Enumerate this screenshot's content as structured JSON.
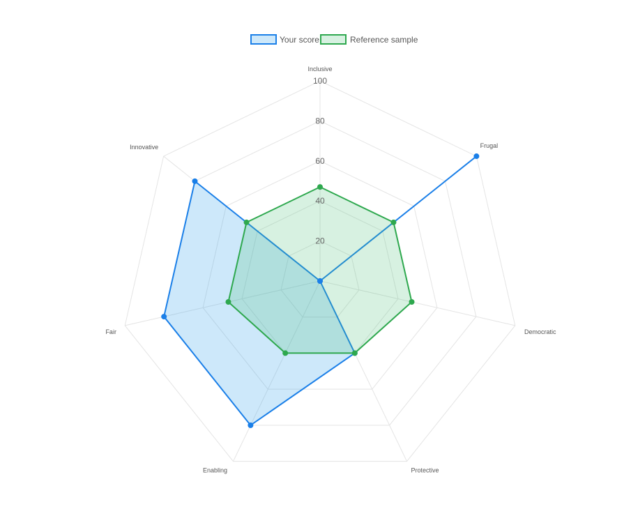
{
  "chart_data": {
    "type": "radar",
    "title": "",
    "legend_position": "top",
    "axes": [
      "Inclusive",
      "Frugal",
      "Democratic",
      "Protective",
      "Enabling",
      "Fair",
      "Innovative"
    ],
    "r_range": [
      0,
      100
    ],
    "ticks": [
      20,
      40,
      60,
      80,
      100
    ],
    "grid": true,
    "series": [
      {
        "name": "Your score",
        "values": [
          0,
          100,
          0,
          40,
          80,
          80,
          80
        ],
        "line_color": "#1a7fe8",
        "fill_color": "rgba(54,162,235,0.25)"
      },
      {
        "name": "Reference sample",
        "values": [
          47,
          47,
          47,
          40,
          40,
          47,
          47
        ],
        "line_color": "#2ea84e",
        "fill_color": "rgba(75,192,120,0.22)"
      }
    ]
  }
}
